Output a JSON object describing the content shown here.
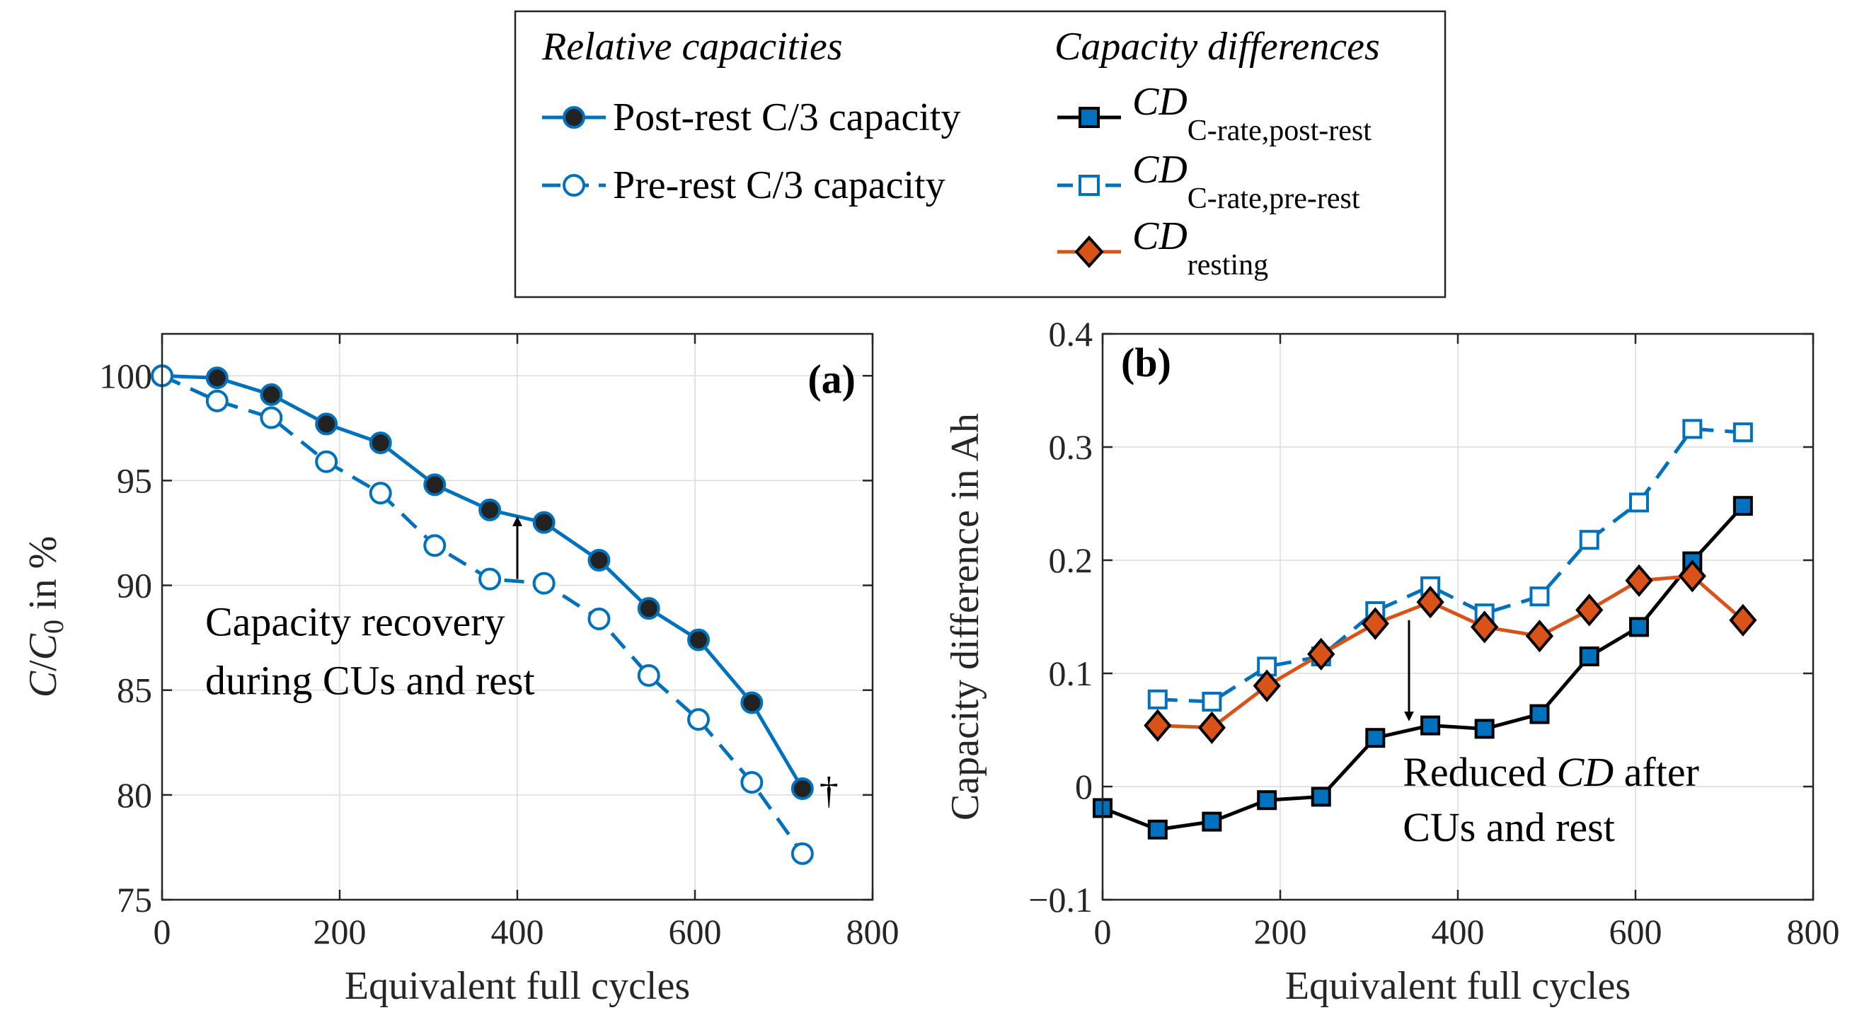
{
  "legend": {
    "heading_left": "Relative capacities",
    "heading_right": "Capacity differences",
    "post_rest": "Post-rest C/3 capacity",
    "pre_rest": "Pre-rest C/3 capacity",
    "cd_main": "CD",
    "cd_post_sub": "C-rate,post-rest",
    "cd_pre_sub": "C-rate,pre-rest",
    "cd_rest_sub": "resting"
  },
  "colors": {
    "blue": "#0072BD",
    "orange": "#D95319",
    "black": "#000000",
    "dark_fill": "#222222"
  },
  "chart_data": [
    {
      "type": "line",
      "panel_label": "(a)",
      "xlabel": "Equivalent full cycles",
      "ylabel_main": "C",
      "ylabel_sep": "/",
      "ylabel_sub_base": "C",
      "ylabel_sub": "0",
      "ylabel_suffix": "in %",
      "xlim": [
        0,
        800
      ],
      "ylim": [
        75,
        102
      ],
      "xticks": [
        0,
        200,
        400,
        600,
        800
      ],
      "yticks": [
        75,
        80,
        85,
        90,
        95,
        100
      ],
      "grid": true,
      "series": [
        {
          "name": "Post-rest C/3 capacity",
          "style": "solid",
          "marker": "circle-filled",
          "x": [
            0,
            62,
            123,
            185,
            246,
            307,
            369,
            430,
            492,
            548,
            604,
            664,
            721
          ],
          "y": [
            100,
            99.9,
            99.1,
            97.7,
            96.8,
            94.8,
            93.6,
            93.0,
            91.2,
            88.9,
            87.4,
            84.4,
            80.3
          ]
        },
        {
          "name": "Pre-rest C/3 capacity",
          "style": "dashed",
          "marker": "circle-open",
          "x": [
            0,
            62,
            123,
            185,
            246,
            307,
            369,
            430,
            492,
            548,
            604,
            664,
            721
          ],
          "y": [
            100,
            98.8,
            98.0,
            95.9,
            94.4,
            91.9,
            90.3,
            90.1,
            88.4,
            85.7,
            83.6,
            80.6,
            77.2
          ]
        }
      ],
      "annotations": {
        "line1": "Capacity recovery",
        "line2": "during CUs and rest",
        "arrow_x": 400,
        "arrow_from_y": 90.3,
        "arrow_to_y": 93.6,
        "dagger": "†"
      }
    },
    {
      "type": "line",
      "panel_label": "(b)",
      "xlabel": "Equivalent full cycles",
      "ylabel": "Capacity difference in Ah",
      "xlim": [
        0,
        800
      ],
      "ylim": [
        -0.1,
        0.4
      ],
      "xticks": [
        0,
        200,
        400,
        600,
        800
      ],
      "yticks": [
        -0.1,
        0,
        0.1,
        0.2,
        0.3,
        0.4
      ],
      "ytick_labels": [
        "−0.1",
        "0",
        "0.1",
        "0.2",
        "0.3",
        "0.4"
      ],
      "grid": true,
      "series": [
        {
          "name": "CD C-rate,post-rest",
          "style": "solid",
          "color": "black",
          "marker": "square-filled",
          "x": [
            0,
            62,
            123,
            185,
            246,
            307,
            369,
            430,
            492,
            548,
            604,
            664,
            721
          ],
          "y": [
            -0.019,
            -0.038,
            -0.031,
            -0.012,
            -0.009,
            0.043,
            0.054,
            0.051,
            0.064,
            0.115,
            0.141,
            0.199,
            0.248
          ]
        },
        {
          "name": "CD C-rate,pre-rest",
          "style": "dashed",
          "color": "blue",
          "marker": "square-open",
          "x": [
            62,
            123,
            185,
            246,
            307,
            369,
            430,
            492,
            548,
            604,
            664,
            721
          ],
          "y": [
            0.077,
            0.075,
            0.106,
            0.115,
            0.155,
            0.177,
            0.153,
            0.168,
            0.218,
            0.251,
            0.316,
            0.313
          ]
        },
        {
          "name": "CD resting",
          "style": "solid",
          "color": "orange",
          "marker": "diamond-filled",
          "x": [
            62,
            123,
            185,
            246,
            307,
            369,
            430,
            492,
            548,
            604,
            664,
            721
          ],
          "y": [
            0.054,
            0.052,
            0.089,
            0.117,
            0.144,
            0.163,
            0.141,
            0.133,
            0.156,
            0.182,
            0.186,
            0.147
          ]
        }
      ],
      "annotations": {
        "line1_pre": "Reduced ",
        "line1_italic": "CD",
        "line1_post": " after",
        "line2": "CUs and rest",
        "arrow_x": 345,
        "arrow_from_y": 0.147,
        "arrow_to_y": 0.062
      }
    }
  ]
}
